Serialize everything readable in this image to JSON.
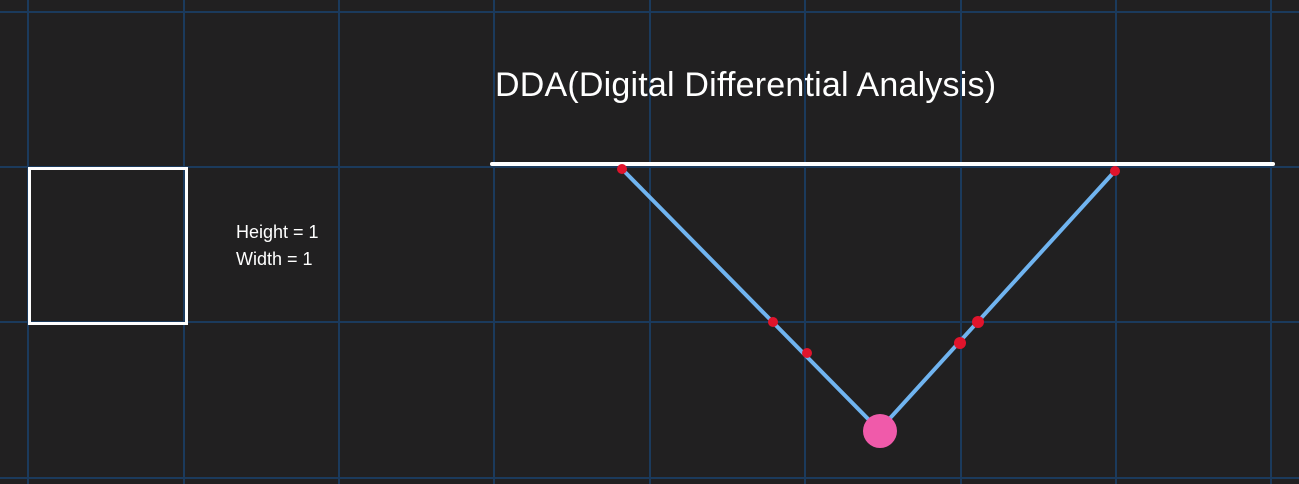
{
  "title": "DDA(Digital Differential Analysis)",
  "unit_cell": {
    "height_label": "Height = 1",
    "width_label": "Width = 1"
  },
  "colors": {
    "background": "#212021",
    "grid": "#1b3a5c",
    "text": "#ffffff",
    "baseline": "#ffffff",
    "segment": "#70b4f0",
    "sample_point": "#e0142c",
    "vertex": "#f05aaa"
  }
}
